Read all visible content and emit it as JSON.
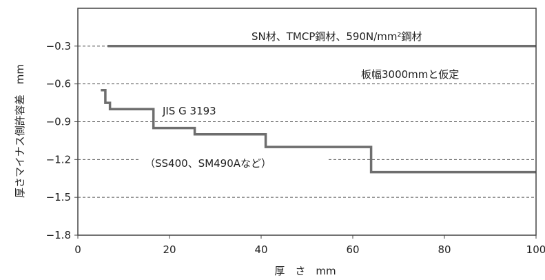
{
  "chart_data": {
    "type": "line",
    "title": "",
    "xlabel": "厚　さ　mm",
    "ylabel": "厚さマイナス側許容差　mm",
    "xlim": [
      0,
      100
    ],
    "ylim": [
      -1.8,
      0
    ],
    "x_ticks": [
      0,
      20,
      40,
      60,
      80,
      100
    ],
    "x_tick_labels": [
      "0",
      "20",
      "40",
      "60",
      "80",
      "100"
    ],
    "y_ticks": [
      -0.3,
      -0.6,
      -0.9,
      -1.2,
      -1.5,
      -1.8
    ],
    "y_tick_labels": [
      "−0.3",
      "−0.6",
      "−0.9",
      "−1.2",
      "−1.5",
      "−1.8"
    ],
    "grid": "horizontal dashed",
    "series": [
      {
        "name": "SN材、TMCP鋼材、590N/mm²鋼材",
        "style": "solid",
        "points": [
          [
            6.5,
            -0.3
          ],
          [
            100,
            -0.3
          ]
        ]
      },
      {
        "name": "JIS G 3193",
        "style": "step",
        "points": [
          [
            5,
            -0.65
          ],
          [
            6,
            -0.65
          ],
          [
            6,
            -0.75
          ],
          [
            7,
            -0.75
          ],
          [
            7,
            -0.8
          ],
          [
            16.5,
            -0.8
          ],
          [
            16.5,
            -0.95
          ],
          [
            25.5,
            -0.95
          ],
          [
            25.5,
            -1.0
          ],
          [
            41,
            -1.0
          ],
          [
            41,
            -1.1
          ],
          [
            64,
            -1.1
          ],
          [
            64,
            -1.3
          ],
          [
            100,
            -1.3
          ]
        ]
      }
    ],
    "annotations": {
      "sn_label": "SN材、TMCP鋼材、590N/mm²鋼材",
      "plate_width": "板幅3000mmと仮定",
      "jis": "JIS G 3193",
      "ss_examples": "（SS400、SM490Aなど）"
    },
    "colors": {
      "series": "#6e6e6e",
      "grid": "#555555",
      "frame": "#444444"
    }
  }
}
